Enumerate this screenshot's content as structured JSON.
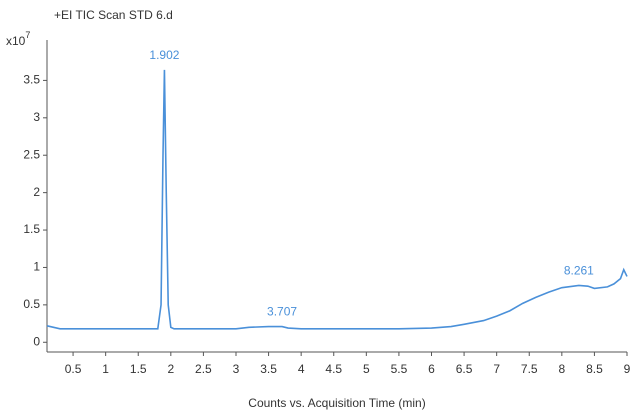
{
  "chart_data": {
    "type": "line",
    "title": "+EI TIC Scan STD 6.d",
    "x_label": "Counts vs. Acquisition Time (min)",
    "y_scale_base": "x10",
    "y_scale_exponent": "7",
    "series": [
      {
        "name": "TIC",
        "color": "#4a90d9",
        "x": [
          0.1,
          0.2,
          0.3,
          0.5,
          1,
          1.5,
          1.8,
          1.85,
          1.88,
          1.902,
          1.93,
          1.96,
          2.0,
          2.05,
          2.1,
          2.5,
          3,
          3.2,
          3.5,
          3.707,
          3.8,
          4,
          5,
          5.5,
          6,
          6.3,
          6.5,
          6.8,
          7,
          7.2,
          7.4,
          7.6,
          7.8,
          8,
          8.261,
          8.4,
          8.5,
          8.7,
          8.8,
          8.9,
          8.95,
          9
        ],
        "values": [
          0.22,
          0.2,
          0.18,
          0.18,
          0.18,
          0.18,
          0.18,
          0.5,
          2.5,
          3.64,
          2.0,
          0.5,
          0.2,
          0.18,
          0.18,
          0.18,
          0.18,
          0.2,
          0.21,
          0.21,
          0.19,
          0.18,
          0.18,
          0.18,
          0.19,
          0.21,
          0.24,
          0.29,
          0.35,
          0.42,
          0.52,
          0.6,
          0.67,
          0.73,
          0.76,
          0.75,
          0.72,
          0.74,
          0.78,
          0.85,
          0.97,
          0.88
        ]
      }
    ],
    "annotations": [
      {
        "text": "1.902",
        "x": 1.902
      },
      {
        "text": "3.707",
        "x": 3.707
      },
      {
        "text": "8.261",
        "x": 8.261
      }
    ],
    "xlim": [
      0.1,
      9
    ],
    "ylim": [
      -0.13,
      4.04
    ],
    "xticks": [
      0.5,
      1,
      1.5,
      2,
      2.5,
      3,
      3.5,
      4,
      4.5,
      5,
      5.5,
      6,
      6.5,
      7,
      7.5,
      8,
      8.5,
      9
    ],
    "yticks": [
      0,
      0.5,
      1,
      1.5,
      2,
      2.5,
      3,
      3.5
    ]
  }
}
